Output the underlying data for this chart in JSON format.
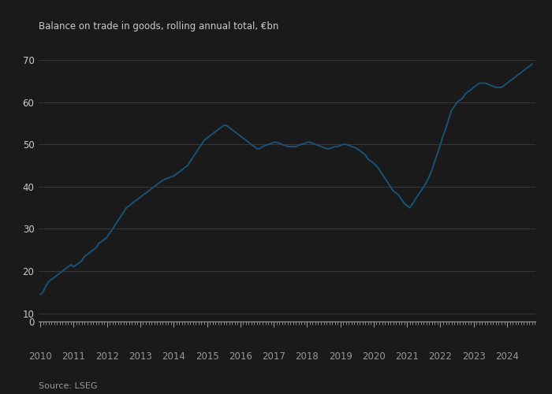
{
  "title": "Balance on trade in goods, rolling annual total, €bn",
  "source": "Source: LSEG",
  "line_color": "#1a5276",
  "background_color": "#1a1a1a",
  "plot_bg_color": "#1a1a1a",
  "grid_color": "#3a3a3a",
  "text_color": "#cccccc",
  "tick_color": "#999999",
  "xlim_start": 2009.95,
  "xlim_end": 2024.85,
  "yticks_main": [
    10,
    20,
    30,
    40,
    50,
    60,
    70
  ],
  "year_ticks": [
    2010,
    2011,
    2012,
    2013,
    2014,
    2015,
    2016,
    2017,
    2018,
    2019,
    2020,
    2021,
    2022,
    2023,
    2024
  ],
  "data": [
    [
      2010.0,
      14.5
    ],
    [
      2010.08,
      15.0
    ],
    [
      2010.17,
      16.5
    ],
    [
      2010.25,
      17.5
    ],
    [
      2010.33,
      18.0
    ],
    [
      2010.42,
      18.5
    ],
    [
      2010.5,
      19.0
    ],
    [
      2010.58,
      19.5
    ],
    [
      2010.67,
      20.0
    ],
    [
      2010.75,
      20.5
    ],
    [
      2010.83,
      21.0
    ],
    [
      2010.92,
      21.5
    ],
    [
      2011.0,
      21.0
    ],
    [
      2011.08,
      21.5
    ],
    [
      2011.17,
      22.0
    ],
    [
      2011.25,
      22.5
    ],
    [
      2011.33,
      23.5
    ],
    [
      2011.42,
      24.0
    ],
    [
      2011.5,
      24.5
    ],
    [
      2011.58,
      25.0
    ],
    [
      2011.67,
      25.5
    ],
    [
      2011.75,
      26.5
    ],
    [
      2011.83,
      27.0
    ],
    [
      2011.92,
      27.5
    ],
    [
      2012.0,
      28.0
    ],
    [
      2012.08,
      29.0
    ],
    [
      2012.17,
      30.0
    ],
    [
      2012.25,
      31.0
    ],
    [
      2012.33,
      32.0
    ],
    [
      2012.42,
      33.0
    ],
    [
      2012.5,
      34.0
    ],
    [
      2012.58,
      35.0
    ],
    [
      2012.67,
      35.5
    ],
    [
      2012.75,
      36.0
    ],
    [
      2012.83,
      36.5
    ],
    [
      2012.92,
      37.0
    ],
    [
      2013.0,
      37.5
    ],
    [
      2013.08,
      38.0
    ],
    [
      2013.17,
      38.5
    ],
    [
      2013.25,
      39.0
    ],
    [
      2013.33,
      39.5
    ],
    [
      2013.42,
      40.0
    ],
    [
      2013.5,
      40.5
    ],
    [
      2013.58,
      41.0
    ],
    [
      2013.67,
      41.5
    ],
    [
      2013.75,
      41.8
    ],
    [
      2013.83,
      42.0
    ],
    [
      2013.92,
      42.3
    ],
    [
      2014.0,
      42.5
    ],
    [
      2014.08,
      43.0
    ],
    [
      2014.17,
      43.5
    ],
    [
      2014.25,
      44.0
    ],
    [
      2014.33,
      44.5
    ],
    [
      2014.42,
      45.0
    ],
    [
      2014.5,
      46.0
    ],
    [
      2014.58,
      47.0
    ],
    [
      2014.67,
      48.0
    ],
    [
      2014.75,
      49.0
    ],
    [
      2014.83,
      50.0
    ],
    [
      2014.92,
      51.0
    ],
    [
      2015.0,
      51.5
    ],
    [
      2015.08,
      52.0
    ],
    [
      2015.17,
      52.5
    ],
    [
      2015.25,
      53.0
    ],
    [
      2015.33,
      53.5
    ],
    [
      2015.42,
      54.0
    ],
    [
      2015.5,
      54.5
    ],
    [
      2015.58,
      54.5
    ],
    [
      2015.67,
      54.0
    ],
    [
      2015.75,
      53.5
    ],
    [
      2015.83,
      53.0
    ],
    [
      2015.92,
      52.5
    ],
    [
      2016.0,
      52.0
    ],
    [
      2016.08,
      51.5
    ],
    [
      2016.17,
      51.0
    ],
    [
      2016.25,
      50.5
    ],
    [
      2016.33,
      50.0
    ],
    [
      2016.42,
      49.5
    ],
    [
      2016.5,
      49.0
    ],
    [
      2016.58,
      49.0
    ],
    [
      2016.67,
      49.5
    ],
    [
      2016.75,
      49.8
    ],
    [
      2016.83,
      50.0
    ],
    [
      2016.92,
      50.2
    ],
    [
      2017.0,
      50.5
    ],
    [
      2017.08,
      50.5
    ],
    [
      2017.17,
      50.3
    ],
    [
      2017.25,
      50.0
    ],
    [
      2017.33,
      49.8
    ],
    [
      2017.42,
      49.5
    ],
    [
      2017.5,
      49.5
    ],
    [
      2017.58,
      49.5
    ],
    [
      2017.67,
      49.5
    ],
    [
      2017.75,
      49.8
    ],
    [
      2017.83,
      50.0
    ],
    [
      2017.92,
      50.2
    ],
    [
      2018.0,
      50.5
    ],
    [
      2018.08,
      50.5
    ],
    [
      2018.17,
      50.3
    ],
    [
      2018.25,
      50.0
    ],
    [
      2018.33,
      49.8
    ],
    [
      2018.42,
      49.5
    ],
    [
      2018.5,
      49.3
    ],
    [
      2018.58,
      49.0
    ],
    [
      2018.67,
      49.0
    ],
    [
      2018.75,
      49.2
    ],
    [
      2018.83,
      49.5
    ],
    [
      2018.92,
      49.5
    ],
    [
      2019.0,
      49.8
    ],
    [
      2019.08,
      50.0
    ],
    [
      2019.17,
      50.0
    ],
    [
      2019.25,
      49.8
    ],
    [
      2019.33,
      49.5
    ],
    [
      2019.42,
      49.3
    ],
    [
      2019.5,
      49.0
    ],
    [
      2019.58,
      48.5
    ],
    [
      2019.67,
      48.0
    ],
    [
      2019.75,
      47.5
    ],
    [
      2019.83,
      46.5
    ],
    [
      2019.92,
      46.0
    ],
    [
      2020.0,
      45.5
    ],
    [
      2020.08,
      45.0
    ],
    [
      2020.17,
      44.0
    ],
    [
      2020.25,
      43.0
    ],
    [
      2020.33,
      42.0
    ],
    [
      2020.42,
      41.0
    ],
    [
      2020.5,
      40.0
    ],
    [
      2020.58,
      39.0
    ],
    [
      2020.67,
      38.5
    ],
    [
      2020.75,
      38.0
    ],
    [
      2020.83,
      37.0
    ],
    [
      2020.92,
      36.0
    ],
    [
      2021.0,
      35.5
    ],
    [
      2021.08,
      35.0
    ],
    [
      2021.17,
      36.0
    ],
    [
      2021.25,
      37.0
    ],
    [
      2021.33,
      38.0
    ],
    [
      2021.42,
      39.0
    ],
    [
      2021.5,
      40.0
    ],
    [
      2021.58,
      41.0
    ],
    [
      2021.67,
      42.5
    ],
    [
      2021.75,
      44.0
    ],
    [
      2021.83,
      46.0
    ],
    [
      2021.92,
      48.0
    ],
    [
      2022.0,
      50.0
    ],
    [
      2022.08,
      52.0
    ],
    [
      2022.17,
      54.0
    ],
    [
      2022.25,
      56.0
    ],
    [
      2022.33,
      58.0
    ],
    [
      2022.42,
      59.0
    ],
    [
      2022.5,
      60.0
    ],
    [
      2022.58,
      60.5
    ],
    [
      2022.67,
      61.0
    ],
    [
      2022.75,
      62.0
    ],
    [
      2022.83,
      62.5
    ],
    [
      2022.92,
      63.0
    ],
    [
      2023.0,
      63.5
    ],
    [
      2023.08,
      64.0
    ],
    [
      2023.17,
      64.5
    ],
    [
      2023.25,
      64.5
    ],
    [
      2023.33,
      64.5
    ],
    [
      2023.42,
      64.3
    ],
    [
      2023.5,
      64.0
    ],
    [
      2023.58,
      63.8
    ],
    [
      2023.67,
      63.5
    ],
    [
      2023.75,
      63.5
    ],
    [
      2023.83,
      63.5
    ],
    [
      2023.92,
      64.0
    ],
    [
      2024.0,
      64.5
    ],
    [
      2024.08,
      65.0
    ],
    [
      2024.17,
      65.5
    ],
    [
      2024.25,
      66.0
    ],
    [
      2024.33,
      66.5
    ],
    [
      2024.42,
      67.0
    ],
    [
      2024.5,
      67.5
    ],
    [
      2024.58,
      68.0
    ],
    [
      2024.67,
      68.5
    ],
    [
      2024.75,
      69.0
    ]
  ]
}
